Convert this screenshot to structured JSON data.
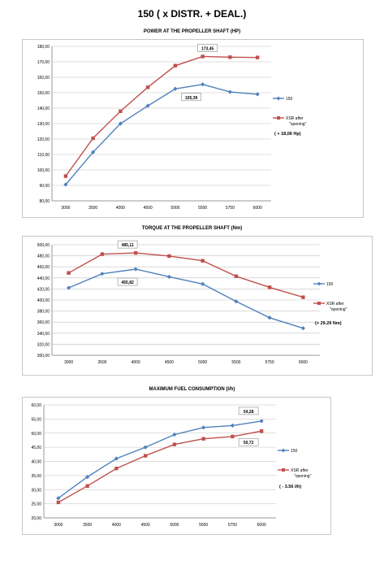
{
  "page_title": "150 ( x DISTR. + DEAL.)",
  "colors": {
    "series_150": "#4f81bd",
    "series_xsr": "#c0504d",
    "grid": "#c0c0c0",
    "axis": "#808080"
  },
  "chart_data": [
    {
      "type": "line",
      "title": "POWER AT THE PROPELLER SHAFT (HP)",
      "x": [
        "3000",
        "3500",
        "4000",
        "4500",
        "5000",
        "5500",
        "5750",
        "6000"
      ],
      "yticks": [
        "80,00",
        "90,00",
        "100,00",
        "110,00",
        "120,00",
        "130,00",
        "140,00",
        "150,00",
        "160,00",
        "170,00",
        "180,00"
      ],
      "ylim": [
        80,
        180
      ],
      "series": [
        {
          "name": "150",
          "values": [
            90.5,
            111.5,
            130,
            141.5,
            152.5,
            155.39,
            150.5,
            149
          ]
        },
        {
          "name": "XSR after \"opening\"",
          "values": [
            96,
            120.5,
            138,
            153.5,
            167.5,
            173.45,
            173,
            172.8
          ]
        }
      ],
      "annotations": [
        {
          "text": "173,45",
          "series": 1,
          "index": 5
        },
        {
          "text": "155,39",
          "series": 0,
          "index": 5
        }
      ],
      "note": "( + 18,06 Hp)"
    },
    {
      "type": "line",
      "title": "TORQUE AT THE PROPELLER SHAFT (Nm)",
      "x": [
        "3000",
        "3500",
        "4000",
        "4500",
        "5000",
        "5500",
        "5750",
        "6000"
      ],
      "yticks": [
        "300,00",
        "320,00",
        "340,00",
        "360,00",
        "380,00",
        "400,00",
        "420,00",
        "440,00",
        "460,00",
        "480,00",
        "500,00"
      ],
      "ylim": [
        300,
        500
      ],
      "series": [
        {
          "name": "150",
          "values": [
            422,
            447.5,
            455.82,
            442,
            429,
            397.5,
            368,
            349
          ]
        },
        {
          "name": "XSR after \"opening\"",
          "values": [
            449,
            483,
            485.11,
            479.5,
            471,
            443,
            423,
            405
          ]
        }
      ],
      "annotations": [
        {
          "text": "485,11",
          "series": 1,
          "index": 2
        },
        {
          "text": "455,82",
          "series": 0,
          "index": 2
        }
      ],
      "note": "(+ 29.29 Nm)"
    },
    {
      "type": "line",
      "title": "MAXIMUM FUEL CONSUMPTION (l/h)",
      "x": [
        "3000",
        "3500",
        "4000",
        "4500",
        "5000",
        "5500",
        "5750",
        "6000"
      ],
      "yticks": [
        "20,00",
        "25,00",
        "30,00",
        "35,00",
        "40,00",
        "45,00",
        "50,00",
        "55,00",
        "60,00"
      ],
      "ylim": [
        20,
        60
      ],
      "series": [
        {
          "name": "150",
          "values": [
            27,
            34.5,
            41,
            45,
            49.5,
            52,
            52.7,
            54.28
          ]
        },
        {
          "name": "XSR after \"opening\"",
          "values": [
            25.5,
            31.3,
            37.5,
            42,
            46,
            48,
            48.8,
            50.72
          ]
        }
      ],
      "annotations": [
        {
          "text": "54,28",
          "series": 0,
          "index": 7
        },
        {
          "text": "50,72",
          "series": 1,
          "index": 7
        }
      ],
      "note": "( - 3.56 l/h)"
    }
  ]
}
